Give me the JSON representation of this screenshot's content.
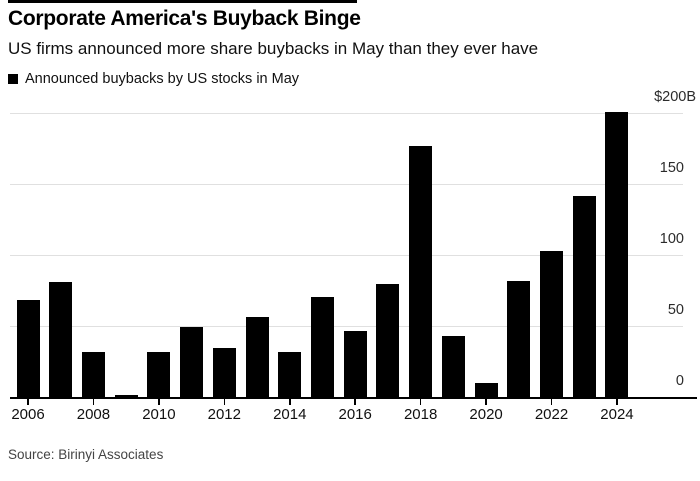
{
  "header": {
    "title": "Corporate America's Buyback Binge",
    "subtitle": "US firms announced more share buybacks in May than they ever have"
  },
  "legend": {
    "label": "Announced buybacks by US stocks in May",
    "swatch_color": "#000000"
  },
  "source": "Source: Birinyi Associates",
  "colors": {
    "bar": "#000000",
    "gridline": "#e0e0e0",
    "axis": "#000000",
    "text": "#111111"
  },
  "chart_data": {
    "type": "bar",
    "title": "Corporate America's Buyback Binge",
    "subtitle": "US firms announced more share buybacks in May than they ever have",
    "series_label": "Announced buybacks by US stocks in May",
    "unit": "billions USD",
    "categories": [
      "2006",
      "2007",
      "2008",
      "2009",
      "2010",
      "2011",
      "2012",
      "2013",
      "2014",
      "2015",
      "2016",
      "2017",
      "2018",
      "2019",
      "2020",
      "2021",
      "2022",
      "2023",
      "2024"
    ],
    "values": [
      69,
      81,
      32,
      2,
      32,
      50,
      35,
      57,
      32,
      71,
      47,
      80,
      177,
      43,
      10,
      82,
      103,
      142,
      201
    ],
    "x_tick_labels": [
      "2006",
      "2008",
      "2010",
      "2012",
      "2014",
      "2016",
      "2018",
      "2020",
      "2022",
      "2024"
    ],
    "y_ticks": [
      0,
      50,
      100,
      150,
      200
    ],
    "y_tick_labels": [
      "0",
      "50",
      "100",
      "150",
      "$200B"
    ],
    "ylim": [
      0,
      205
    ],
    "grid": true,
    "legend_position": "top-left",
    "y_axis_side": "right",
    "bar_color": "#000000"
  }
}
